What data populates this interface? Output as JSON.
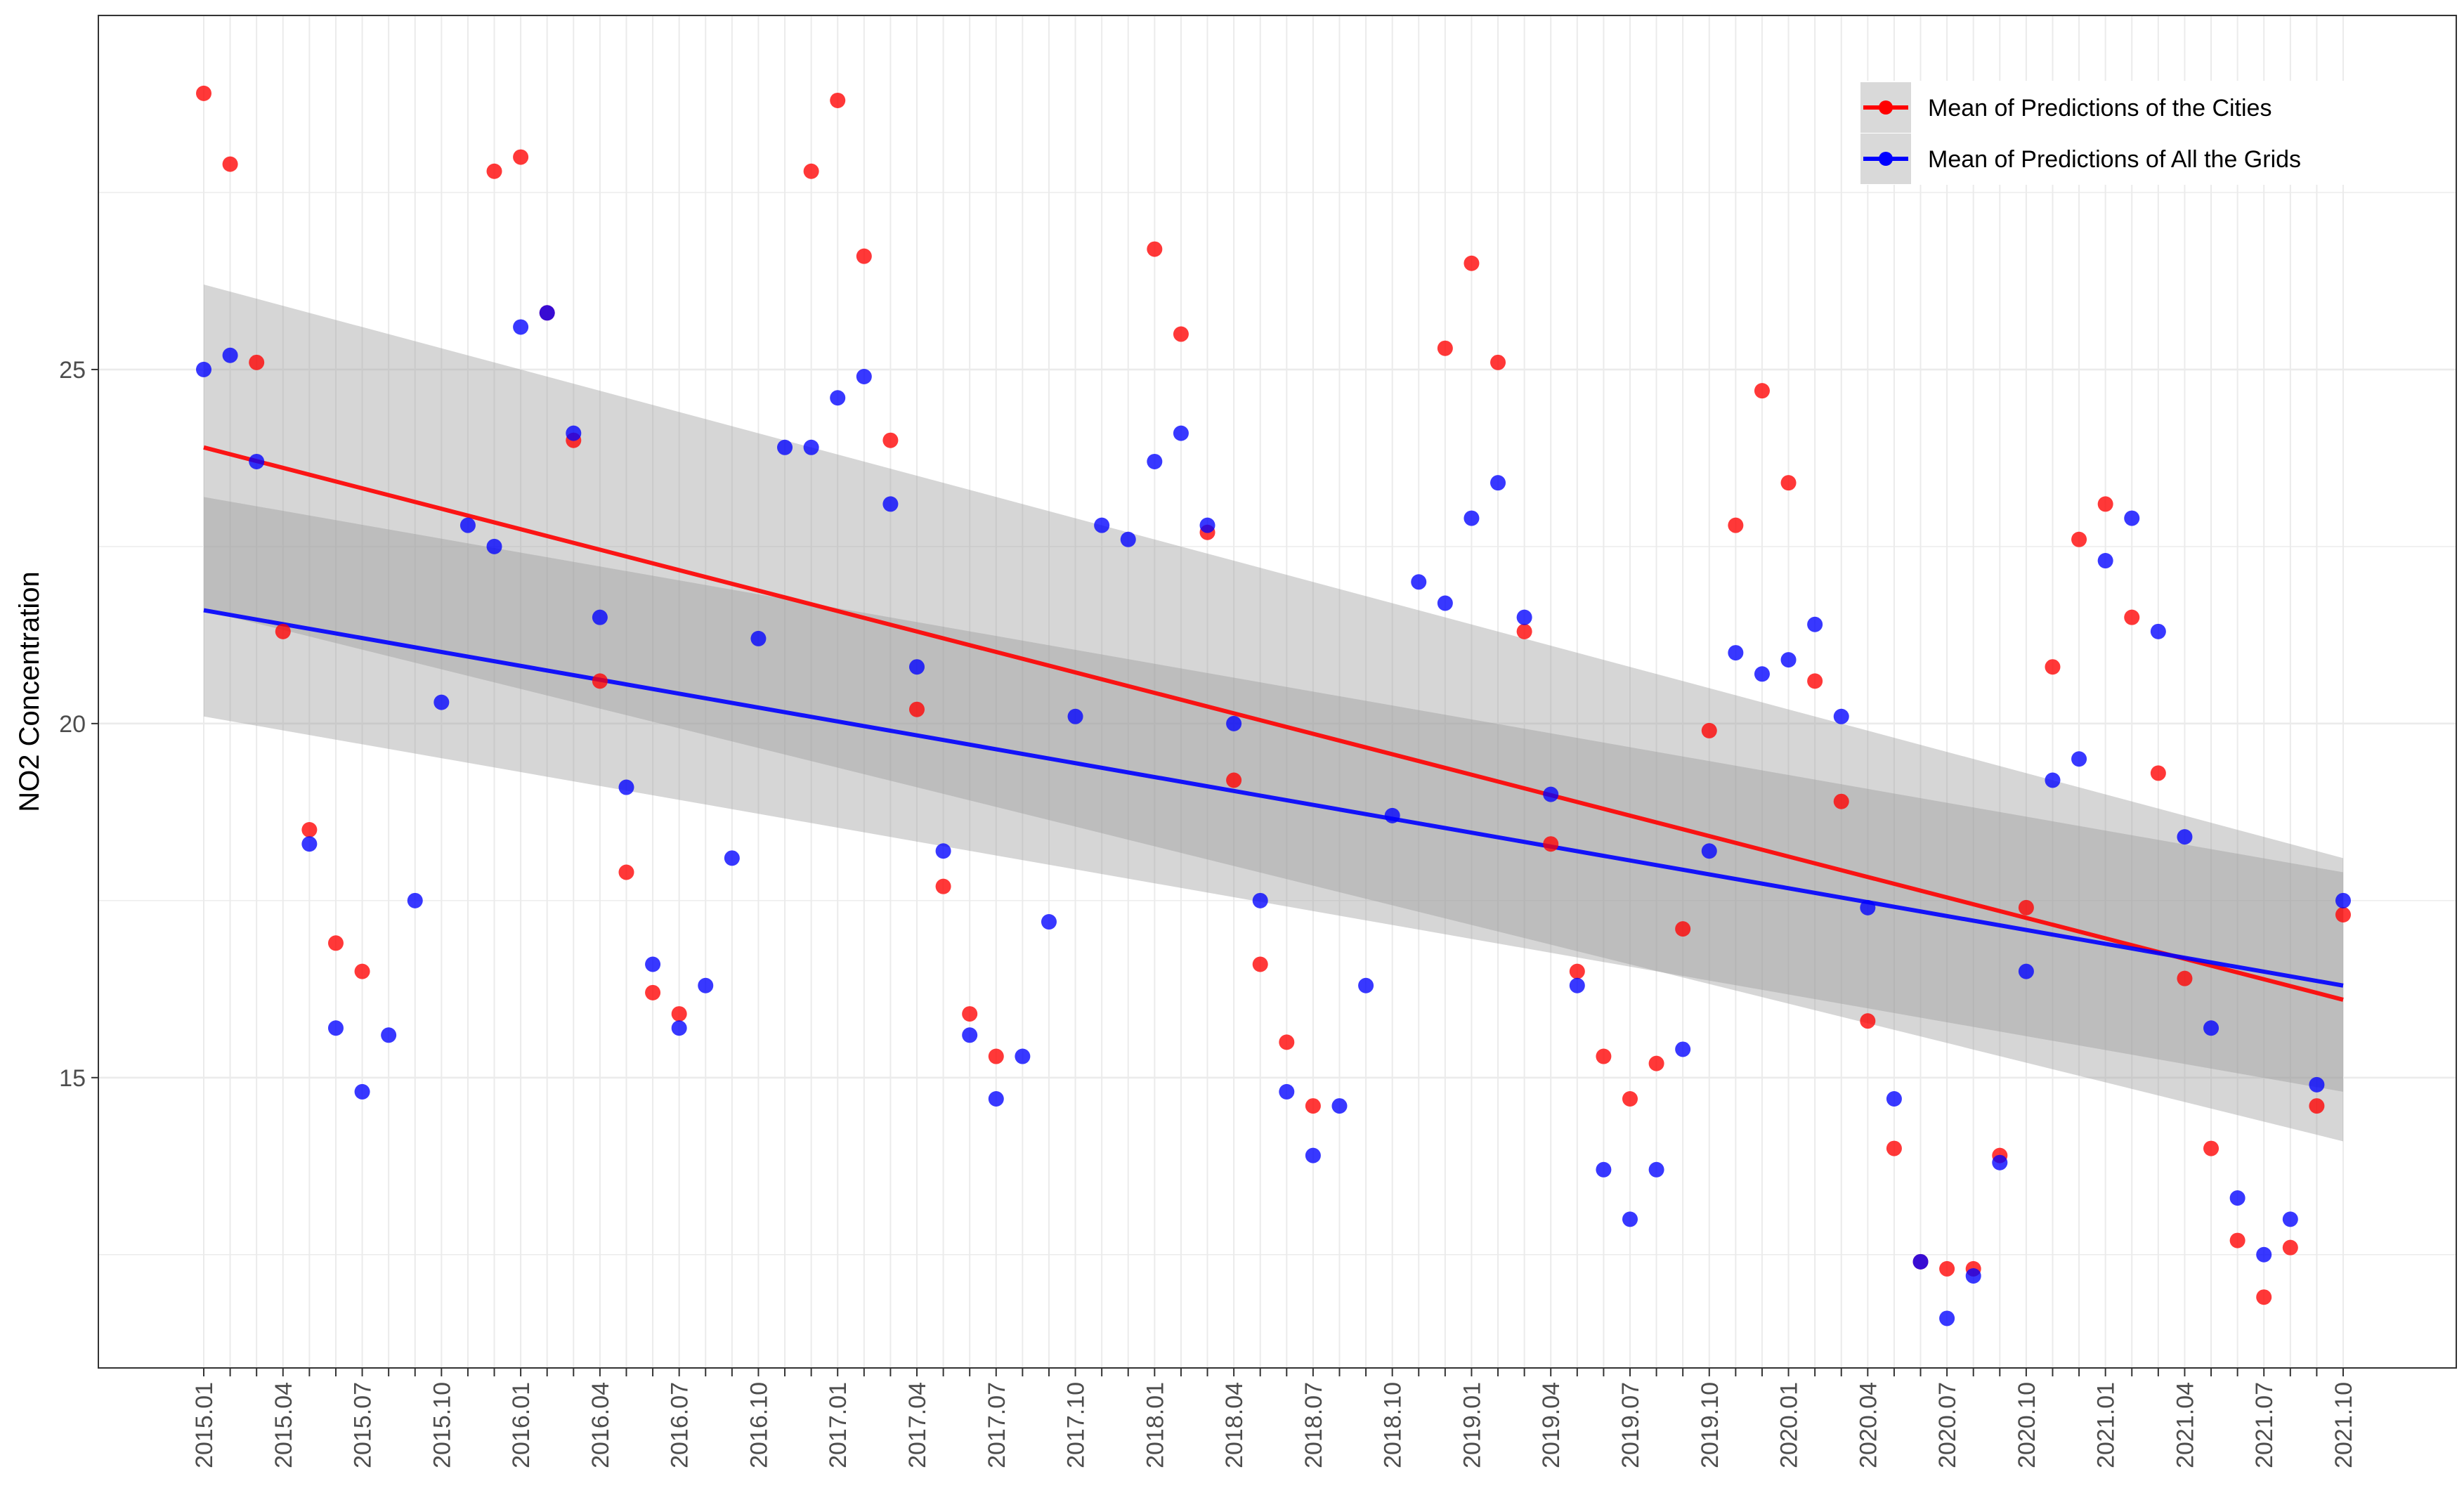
{
  "chart_data": {
    "type": "scatter",
    "title": "",
    "xlabel": "",
    "ylabel": "NO2 Concentration",
    "ylim": [
      10.9,
      30.0
    ],
    "y_ticks": [
      15,
      20,
      25
    ],
    "grid": true,
    "legend_position": "top-right",
    "x_categories": [
      "2015.01",
      "2015.02",
      "2015.03",
      "2015.04",
      "2015.05",
      "2015.06",
      "2015.07",
      "2015.08",
      "2015.09",
      "2015.10",
      "2015.11",
      "2015.12",
      "2016.01",
      "2016.02",
      "2016.03",
      "2016.04",
      "2016.05",
      "2016.06",
      "2016.07",
      "2016.08",
      "2016.09",
      "2016.10",
      "2016.11",
      "2016.12",
      "2017.01",
      "2017.02",
      "2017.03",
      "2017.04",
      "2017.05",
      "2017.06",
      "2017.07",
      "2017.08",
      "2017.09",
      "2017.10",
      "2017.11",
      "2017.12",
      "2018.01",
      "2018.02",
      "2018.03",
      "2018.04",
      "2018.05",
      "2018.06",
      "2018.07",
      "2018.08",
      "2018.09",
      "2018.10",
      "2018.11",
      "2018.12",
      "2019.01",
      "2019.02",
      "2019.03",
      "2019.04",
      "2019.05",
      "2019.06",
      "2019.07",
      "2019.08",
      "2019.09",
      "2019.10",
      "2019.11",
      "2019.12",
      "2020.01",
      "2020.02",
      "2020.03",
      "2020.04",
      "2020.05",
      "2020.06",
      "2020.07",
      "2020.08",
      "2020.09",
      "2020.10",
      "2020.11",
      "2020.12",
      "2021.01",
      "2021.02",
      "2021.03",
      "2021.04",
      "2021.05",
      "2021.06",
      "2021.07",
      "2021.08",
      "2021.09",
      "2021.10"
    ],
    "x_tick_labels": [
      "2015.01",
      "2015.04",
      "2015.07",
      "2015.10",
      "2016.01",
      "2016.04",
      "2016.07",
      "2016.10",
      "2017.01",
      "2017.04",
      "2017.07",
      "2017.10",
      "2018.01",
      "2018.04",
      "2018.07",
      "2018.10",
      "2019.01",
      "2019.04",
      "2019.07",
      "2019.10",
      "2020.01",
      "2020.04",
      "2020.07",
      "2020.10",
      "2021.01",
      "2021.04",
      "2021.07",
      "2021.10"
    ],
    "series": [
      {
        "name": "Mean of Predictions of the Cities",
        "color": "#ff0000",
        "values": [
          28.9,
          27.9,
          25.1,
          21.3,
          18.5,
          16.9,
          16.5,
          null,
          null,
          null,
          null,
          27.8,
          28.0,
          25.8,
          24.0,
          20.6,
          17.9,
          16.2,
          15.9,
          null,
          null,
          null,
          null,
          27.8,
          28.8,
          26.6,
          24.0,
          20.2,
          17.7,
          15.9,
          15.3,
          null,
          null,
          null,
          null,
          null,
          26.7,
          25.5,
          22.7,
          19.2,
          16.6,
          15.5,
          14.6,
          null,
          null,
          null,
          null,
          25.3,
          26.5,
          25.1,
          21.3,
          18.3,
          16.5,
          15.3,
          14.7,
          15.2,
          17.1,
          19.9,
          22.8,
          24.7,
          23.4,
          20.6,
          18.9,
          15.8,
          14.0,
          12.4,
          12.3,
          12.3,
          13.9,
          17.4,
          20.8,
          22.6,
          23.1,
          21.5,
          19.3,
          16.4,
          14.0,
          12.7,
          11.9,
          12.6,
          14.6,
          17.3
        ],
        "trend": [
          23.9,
          16.1
        ],
        "band_upper": [
          26.2,
          18.1
        ],
        "band_lower": [
          21.6,
          14.1
        ]
      },
      {
        "name": "Mean of Predictions of All the Grids",
        "color": "#0000ff",
        "values": [
          25.0,
          25.2,
          23.7,
          null,
          18.3,
          15.7,
          14.8,
          15.6,
          17.5,
          20.3,
          22.8,
          22.5,
          25.6,
          25.8,
          24.1,
          21.5,
          19.1,
          16.6,
          15.7,
          16.3,
          18.1,
          21.2,
          23.9,
          23.9,
          24.6,
          24.9,
          23.1,
          20.8,
          18.2,
          15.6,
          14.7,
          15.3,
          17.2,
          20.1,
          22.8,
          22.6,
          23.7,
          24.1,
          22.8,
          20.0,
          17.5,
          14.8,
          13.9,
          14.6,
          16.3,
          18.7,
          22.0,
          21.7,
          22.9,
          23.4,
          21.5,
          19.0,
          16.3,
          13.7,
          13.0,
          13.7,
          15.4,
          18.2,
          21.0,
          20.7,
          20.9,
          21.4,
          20.1,
          17.4,
          14.7,
          12.4,
          11.6,
          12.2,
          13.8,
          16.5,
          19.2,
          19.5,
          22.3,
          22.9,
          21.3,
          18.4,
          15.7,
          13.3,
          12.5,
          13.0,
          14.9,
          17.5
        ],
        "trend": [
          21.6,
          16.3
        ],
        "band_upper": [
          23.2,
          17.9
        ],
        "band_lower": [
          20.1,
          14.8
        ]
      }
    ],
    "band_color": "#999999"
  }
}
